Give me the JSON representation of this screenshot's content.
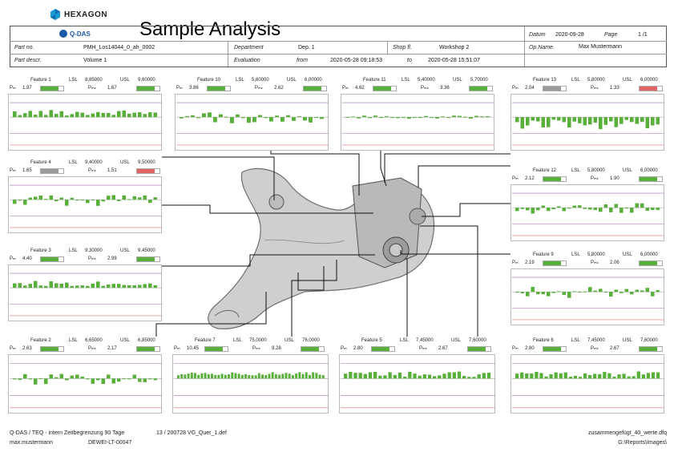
{
  "header": {
    "brand": "HEXAGON",
    "product": "Q-DAS",
    "title": "Sample Analysis",
    "datum_label": "Datum",
    "datum_value": "2020-09-28",
    "page_label": "Page",
    "page_value": "1 /1",
    "partno_label": "Part no.",
    "partno_value": "PMH_Los14044_0_ah_0002",
    "department_label": "Department",
    "department_value": "Dep. 1",
    "shopfl_label": "Shop fl.",
    "shopfl_value": "Workshop 2",
    "opname_label": "Op.Name.",
    "opname_value": "Max Mustermann",
    "partdescr_label": "Part descr.",
    "partdescr_value": "Volume 1",
    "evaluation_label": "Evaluation",
    "from_label": "from",
    "from_value": "2020-05-28 09:18:53",
    "to_label": "to",
    "to_value": "2020-05-28 15:51:07"
  },
  "labels": {
    "lsl": "LSL",
    "usl": "USL",
    "pm": "Pₘ",
    "pmk": "Pₘₖ"
  },
  "colors": {
    "good": "#58b03a",
    "warn": "#9a9a9a",
    "bad": "#e36464",
    "spec_line": "#e07070",
    "limit_line": "#a36ab0"
  },
  "features": [
    {
      "name": "Feature 1",
      "lsl": "8,85000",
      "usl": "9,60000",
      "pm": "1.97",
      "pmk": "1.67",
      "pm_status": "good",
      "pmk_status": "good"
    },
    {
      "name": "Feature 10",
      "lsl": "5,60000",
      "usl": "6,00000",
      "pm": "3.86",
      "pmk": "2.62",
      "pm_status": "good",
      "pmk_status": "good"
    },
    {
      "name": "Feature 11",
      "lsl": "5,40000",
      "usl": "5,70000",
      "pm": "4.62",
      "pmk": "3.36",
      "pm_status": "good",
      "pmk_status": "good"
    },
    {
      "name": "Feature 13",
      "lsl": "5,80000",
      "usl": "6,00000",
      "pm": "2.04",
      "pmk": "1.33",
      "pm_status": "warn",
      "pmk_status": "bad"
    },
    {
      "name": "Feature 4",
      "lsl": "9,40000",
      "usl": "9,50000",
      "pm": "1.65",
      "pmk": "1.51",
      "pm_status": "warn",
      "pmk_status": "bad"
    },
    {
      "name": "Feature 12",
      "lsl": "5,80000",
      "usl": "6,00000",
      "pm": "2.12",
      "pmk": "1.90",
      "pm_status": "good",
      "pmk_status": "good"
    },
    {
      "name": "Feature 3",
      "lsl": "9,30000",
      "usl": "9,45000",
      "pm": "4.40",
      "pmk": "2.99",
      "pm_status": "good",
      "pmk_status": "good"
    },
    {
      "name": "Feature 9",
      "lsl": "5,80000",
      "usl": "6,00000",
      "pm": "2.19",
      "pmk": "2.06",
      "pm_status": "good",
      "pmk_status": "good"
    },
    {
      "name": "Feature 2",
      "lsl": "6,65000",
      "usl": "6,85000",
      "pm": "2.63",
      "pmk": "2.17",
      "pm_status": "good",
      "pmk_status": "good"
    },
    {
      "name": "Feature 7",
      "lsl": "75,0000",
      "usl": "76,0000",
      "pm": "10.45",
      "pmk": "9.28",
      "pm_status": "good",
      "pmk_status": "good"
    },
    {
      "name": "Feature 5",
      "lsl": "7,45000",
      "usl": "7,60000",
      "pm": "2.80",
      "pmk": "2.67",
      "pm_status": "good",
      "pmk_status": "good"
    },
    {
      "name": "Feature 6",
      "lsl": "7,45000",
      "usl": "7,60000",
      "pm": "2.80",
      "pmk": "2.67",
      "pm_status": "good",
      "pmk_status": "good"
    }
  ],
  "footer": {
    "left1": "Q-DAS / TEQ - intern Zeitbegrenzung 90 Tage",
    "mid1": "13 / 200728 VG_Quer_1.def",
    "right1": "zusammengefügt_40_werte.dfq",
    "left2": "max.mustermann",
    "mid2": "DEWEI-LT-00047",
    "right2": "G:\\Reports\\Images\\"
  }
}
